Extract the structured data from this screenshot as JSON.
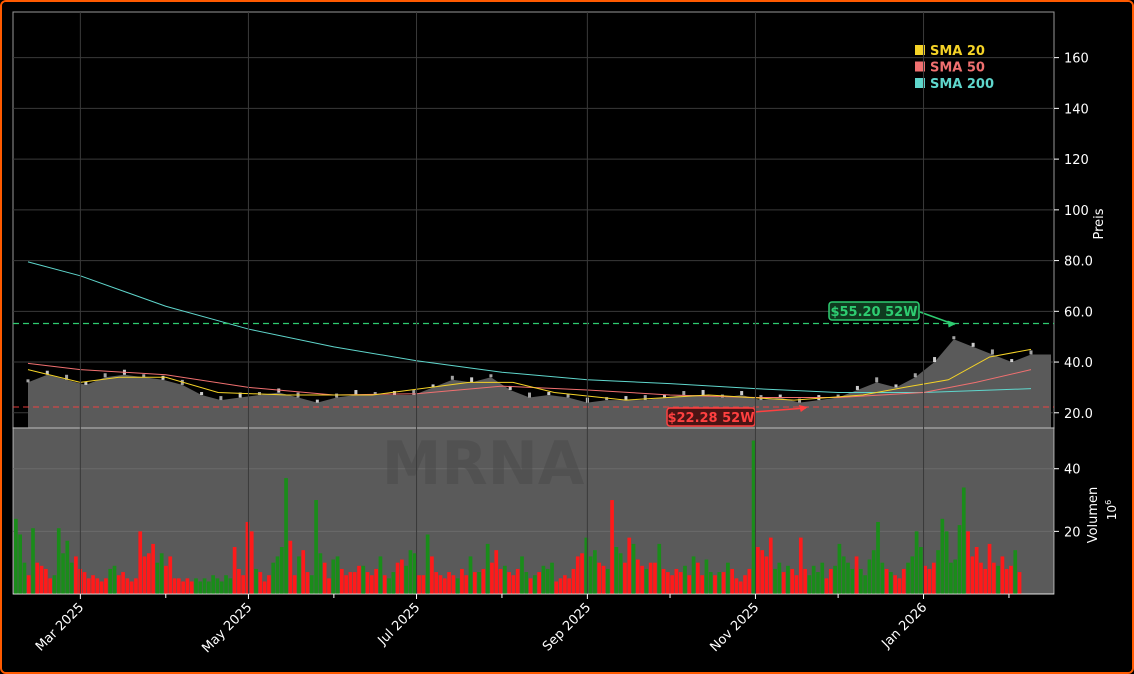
{
  "chart_data": {
    "type": "candlestick",
    "ticker_watermark": "MRNA",
    "price_axis": {
      "label": "Preis",
      "ticks": [
        20,
        40,
        60,
        80,
        100,
        120,
        140,
        160
      ],
      "tick_labels": [
        "20.0",
        "40.0",
        "60.0",
        "80.0",
        "100",
        "120",
        "140",
        "160"
      ],
      "range": [
        14,
        178
      ]
    },
    "volume_axis": {
      "label": "Volumen",
      "multiplier": "10",
      "multiplier_exp": "6",
      "ticks": [
        20,
        40
      ],
      "range": [
        0,
        53
      ]
    },
    "x_axis": {
      "start": "2025-02-10",
      "end": "2026-02-09",
      "ticks": [
        {
          "date": "2025-03-01",
          "label": "Mar 2025"
        },
        {
          "date": "2025-05-01",
          "label": "May 2025"
        },
        {
          "date": "2025-07-01",
          "label": "Jul 2025"
        },
        {
          "date": "2025-09-01",
          "label": "Sep 2025"
        },
        {
          "date": "2025-11-01",
          "label": "Nov 2025"
        },
        {
          "date": "2026-01-01",
          "label": "Jan 2026"
        }
      ],
      "minor_ticks": [
        "2025-04-01",
        "2025-06-01",
        "2025-08-01",
        "2025-10-01",
        "2025-12-01",
        "2026-02-01"
      ]
    },
    "legend": {
      "position": "top-right",
      "items": [
        {
          "label": "SMA 20",
          "color": "#f5d327"
        },
        {
          "label": "SMA 50",
          "color": "#f07070"
        },
        {
          "label": "SMA 200",
          "color": "#5fd6cc"
        }
      ]
    },
    "annotations": {
      "high_52w": {
        "value": 55.2,
        "label": "$55.20 52W",
        "color": "#2ecc71",
        "date": "2026-01-13"
      },
      "low_52w": {
        "value": 22.28,
        "label": "$22.28 52W",
        "color": "#ff4040",
        "date": "2025-11-20"
      }
    },
    "price_series": [
      [
        "2025-02-10",
        32
      ],
      [
        "2025-02-17",
        35
      ],
      [
        "2025-02-24",
        33
      ],
      [
        "2025-03-03",
        31
      ],
      [
        "2025-03-10",
        34
      ],
      [
        "2025-03-17",
        35
      ],
      [
        "2025-03-24",
        34
      ],
      [
        "2025-03-31",
        33
      ],
      [
        "2025-04-07",
        31
      ],
      [
        "2025-04-14",
        27
      ],
      [
        "2025-04-21",
        25
      ],
      [
        "2025-04-28",
        26
      ],
      [
        "2025-05-05",
        27
      ],
      [
        "2025-05-12",
        28
      ],
      [
        "2025-05-19",
        26
      ],
      [
        "2025-05-26",
        24
      ],
      [
        "2025-06-02",
        26
      ],
      [
        "2025-06-09",
        27
      ],
      [
        "2025-06-16",
        27
      ],
      [
        "2025-06-23",
        27
      ],
      [
        "2025-06-30",
        27
      ],
      [
        "2025-07-07",
        30
      ],
      [
        "2025-07-14",
        33
      ],
      [
        "2025-07-21",
        32
      ],
      [
        "2025-07-28",
        34
      ],
      [
        "2025-08-04",
        29
      ],
      [
        "2025-08-11",
        26
      ],
      [
        "2025-08-18",
        27
      ],
      [
        "2025-08-25",
        26
      ],
      [
        "2025-09-01",
        24
      ],
      [
        "2025-09-08",
        25
      ],
      [
        "2025-09-15",
        25
      ],
      [
        "2025-09-22",
        25
      ],
      [
        "2025-09-29",
        26
      ],
      [
        "2025-10-06",
        27
      ],
      [
        "2025-10-13",
        27
      ],
      [
        "2025-10-20",
        26
      ],
      [
        "2025-10-27",
        27
      ],
      [
        "2025-11-03",
        25
      ],
      [
        "2025-11-10",
        26
      ],
      [
        "2025-11-17",
        24
      ],
      [
        "2025-11-24",
        25
      ],
      [
        "2025-12-01",
        26
      ],
      [
        "2025-12-08",
        29
      ],
      [
        "2025-12-15",
        32
      ],
      [
        "2025-12-22",
        30
      ],
      [
        "2025-12-29",
        34
      ],
      [
        "2026-01-05",
        40
      ],
      [
        "2026-01-12",
        49
      ],
      [
        "2026-01-19",
        46
      ],
      [
        "2026-01-26",
        43
      ],
      [
        "2026-02-02",
        40
      ],
      [
        "2026-02-09",
        43
      ]
    ],
    "sma20": [
      [
        "2025-02-10",
        37
      ],
      [
        "2025-03-01",
        32
      ],
      [
        "2025-03-15",
        34
      ],
      [
        "2025-04-01",
        34
      ],
      [
        "2025-04-20",
        28
      ],
      [
        "2025-05-15",
        27
      ],
      [
        "2025-06-15",
        27
      ],
      [
        "2025-07-20",
        32
      ],
      [
        "2025-08-05",
        32
      ],
      [
        "2025-08-20",
        28
      ],
      [
        "2025-09-15",
        25
      ],
      [
        "2025-10-15",
        27
      ],
      [
        "2025-11-15",
        25
      ],
      [
        "2025-12-10",
        27
      ],
      [
        "2025-12-25",
        30
      ],
      [
        "2026-01-10",
        33
      ],
      [
        "2026-01-25",
        42
      ],
      [
        "2026-02-09",
        45
      ]
    ],
    "sma50": [
      [
        "2025-02-10",
        39.5
      ],
      [
        "2025-03-01",
        37
      ],
      [
        "2025-04-01",
        35
      ],
      [
        "2025-05-01",
        30
      ],
      [
        "2025-06-01",
        27
      ],
      [
        "2025-07-01",
        27.5
      ],
      [
        "2025-08-01",
        30.5
      ],
      [
        "2025-09-01",
        29
      ],
      [
        "2025-10-01",
        27
      ],
      [
        "2025-11-01",
        26
      ],
      [
        "2025-12-01",
        26
      ],
      [
        "2026-01-01",
        28
      ],
      [
        "2026-01-20",
        32
      ],
      [
        "2026-02-09",
        37
      ]
    ],
    "sma200": [
      [
        "2025-02-10",
        79.5
      ],
      [
        "2025-03-01",
        74
      ],
      [
        "2025-04-01",
        62
      ],
      [
        "2025-05-01",
        53
      ],
      [
        "2025-06-01",
        46
      ],
      [
        "2025-07-01",
        40.5
      ],
      [
        "2025-08-01",
        36
      ],
      [
        "2025-09-01",
        33
      ],
      [
        "2025-10-01",
        31.5
      ],
      [
        "2025-11-01",
        29.5
      ],
      [
        "2025-12-01",
        28
      ],
      [
        "2026-01-01",
        28
      ],
      [
        "2026-02-09",
        29.5
      ]
    ],
    "volume_series": [
      [
        24,
        1
      ],
      [
        19,
        1
      ],
      [
        10,
        1
      ],
      [
        6,
        0
      ],
      [
        21,
        1
      ],
      [
        10,
        0
      ],
      [
        9,
        0
      ],
      [
        8,
        0
      ],
      [
        5,
        0
      ],
      [
        6,
        1
      ],
      [
        21,
        1
      ],
      [
        13,
        1
      ],
      [
        17,
        1
      ],
      [
        10,
        1
      ],
      [
        12,
        0
      ],
      [
        8,
        0
      ],
      [
        7,
        0
      ],
      [
        5,
        0
      ],
      [
        6,
        0
      ],
      [
        5,
        0
      ],
      [
        4,
        0
      ],
      [
        5,
        0
      ],
      [
        8,
        1
      ],
      [
        9,
        1
      ],
      [
        6,
        0
      ],
      [
        7,
        0
      ],
      [
        5,
        0
      ],
      [
        4,
        0
      ],
      [
        5,
        0
      ],
      [
        20,
        0
      ],
      [
        12,
        0
      ],
      [
        13,
        0
      ],
      [
        16,
        0
      ],
      [
        10,
        1
      ],
      [
        13,
        1
      ],
      [
        9,
        0
      ],
      [
        12,
        0
      ],
      [
        5,
        0
      ],
      [
        5,
        0
      ],
      [
        4,
        0
      ],
      [
        5,
        0
      ],
      [
        4,
        0
      ],
      [
        5,
        1
      ],
      [
        4,
        1
      ],
      [
        5,
        1
      ],
      [
        4,
        1
      ],
      [
        6,
        1
      ],
      [
        5,
        1
      ],
      [
        4,
        1
      ],
      [
        6,
        1
      ],
      [
        5,
        1
      ],
      [
        15,
        0
      ],
      [
        8,
        0
      ],
      [
        6,
        0
      ],
      [
        23,
        0
      ],
      [
        20,
        0
      ],
      [
        8,
        1
      ],
      [
        7,
        0
      ],
      [
        4,
        0
      ],
      [
        6,
        0
      ],
      [
        10,
        1
      ],
      [
        12,
        1
      ],
      [
        15,
        1
      ],
      [
        37,
        1
      ],
      [
        17,
        0
      ],
      [
        6,
        0
      ],
      [
        12,
        1
      ],
      [
        14,
        0
      ],
      [
        7,
        0
      ],
      [
        6,
        1
      ],
      [
        30,
        1
      ],
      [
        13,
        1
      ],
      [
        10,
        0
      ],
      [
        5,
        0
      ],
      [
        11,
        1
      ],
      [
        12,
        1
      ],
      [
        8,
        0
      ],
      [
        6,
        0
      ],
      [
        7,
        0
      ],
      [
        7,
        0
      ],
      [
        9,
        0
      ],
      [
        9,
        1
      ],
      [
        7,
        0
      ],
      [
        6,
        0
      ],
      [
        8,
        0
      ],
      [
        12,
        1
      ],
      [
        6,
        0
      ],
      [
        5,
        1
      ],
      [
        7,
        1
      ],
      [
        10,
        0
      ],
      [
        11,
        0
      ],
      [
        9,
        1
      ],
      [
        14,
        1
      ],
      [
        13,
        1
      ],
      [
        6,
        0
      ],
      [
        6,
        0
      ],
      [
        19,
        1
      ],
      [
        12,
        0
      ],
      [
        7,
        0
      ],
      [
        6,
        0
      ],
      [
        5,
        0
      ],
      [
        7,
        0
      ],
      [
        6,
        0
      ],
      [
        5,
        1
      ],
      [
        8,
        0
      ],
      [
        6,
        0
      ],
      [
        12,
        1
      ],
      [
        7,
        0
      ],
      [
        7,
        1
      ],
      [
        8,
        0
      ],
      [
        16,
        1
      ],
      [
        10,
        0
      ],
      [
        14,
        0
      ],
      [
        8,
        0
      ],
      [
        9,
        1
      ],
      [
        7,
        0
      ],
      [
        6,
        0
      ],
      [
        8,
        0
      ],
      [
        12,
        1
      ],
      [
        7,
        1
      ],
      [
        5,
        0
      ],
      [
        6,
        1
      ],
      [
        7,
        0
      ],
      [
        9,
        1
      ],
      [
        8,
        1
      ],
      [
        10,
        1
      ],
      [
        4,
        0
      ],
      [
        5,
        0
      ],
      [
        6,
        0
      ],
      [
        5,
        0
      ],
      [
        8,
        0
      ],
      [
        12,
        0
      ],
      [
        13,
        0
      ],
      [
        18,
        1
      ],
      [
        12,
        1
      ],
      [
        14,
        1
      ],
      [
        10,
        0
      ],
      [
        9,
        0
      ],
      [
        8,
        1
      ],
      [
        30,
        0
      ],
      [
        15,
        1
      ],
      [
        13,
        1
      ],
      [
        10,
        0
      ],
      [
        18,
        0
      ],
      [
        16,
        1
      ],
      [
        11,
        0
      ],
      [
        9,
        0
      ],
      [
        8,
        1
      ],
      [
        10,
        0
      ],
      [
        10,
        0
      ],
      [
        16,
        1
      ],
      [
        8,
        0
      ],
      [
        7,
        0
      ],
      [
        6,
        0
      ],
      [
        8,
        0
      ],
      [
        7,
        0
      ],
      [
        9,
        1
      ],
      [
        6,
        0
      ],
      [
        12,
        1
      ],
      [
        10,
        0
      ],
      [
        6,
        0
      ],
      [
        11,
        1
      ],
      [
        7,
        1
      ],
      [
        6,
        0
      ],
      [
        7,
        1
      ],
      [
        7,
        0
      ],
      [
        10,
        1
      ],
      [
        8,
        0
      ],
      [
        5,
        0
      ],
      [
        4,
        0
      ],
      [
        6,
        0
      ],
      [
        8,
        0
      ],
      [
        49,
        1
      ],
      [
        15,
        0
      ],
      [
        14,
        0
      ],
      [
        12,
        0
      ],
      [
        18,
        0
      ],
      [
        8,
        1
      ],
      [
        10,
        1
      ],
      [
        7,
        0
      ],
      [
        9,
        1
      ],
      [
        8,
        0
      ],
      [
        6,
        0
      ],
      [
        18,
        0
      ],
      [
        8,
        0
      ],
      [
        6,
        1
      ],
      [
        9,
        1
      ],
      [
        7,
        1
      ],
      [
        10,
        1
      ],
      [
        5,
        0
      ],
      [
        8,
        0
      ],
      [
        9,
        1
      ],
      [
        16,
        1
      ],
      [
        12,
        1
      ],
      [
        10,
        1
      ],
      [
        8,
        1
      ],
      [
        12,
        0
      ],
      [
        8,
        1
      ],
      [
        6,
        1
      ],
      [
        11,
        1
      ],
      [
        14,
        1
      ],
      [
        23,
        1
      ],
      [
        10,
        1
      ],
      [
        8,
        0
      ],
      [
        7,
        1
      ],
      [
        6,
        0
      ],
      [
        5,
        0
      ],
      [
        8,
        0
      ],
      [
        10,
        1
      ],
      [
        12,
        1
      ],
      [
        20,
        1
      ],
      [
        15,
        1
      ],
      [
        9,
        0
      ],
      [
        8,
        0
      ],
      [
        10,
        0
      ],
      [
        14,
        1
      ],
      [
        24,
        1
      ],
      [
        20,
        1
      ],
      [
        10,
        1
      ],
      [
        11,
        1
      ],
      [
        22,
        1
      ],
      [
        34,
        1
      ],
      [
        20,
        0
      ],
      [
        12,
        0
      ],
      [
        15,
        0
      ],
      [
        10,
        0
      ],
      [
        8,
        0
      ],
      [
        16,
        0
      ],
      [
        10,
        0
      ],
      [
        9,
        1
      ],
      [
        12,
        0
      ],
      [
        8,
        0
      ],
      [
        9,
        0
      ],
      [
        14,
        1
      ],
      [
        7,
        0
      ]
    ]
  }
}
